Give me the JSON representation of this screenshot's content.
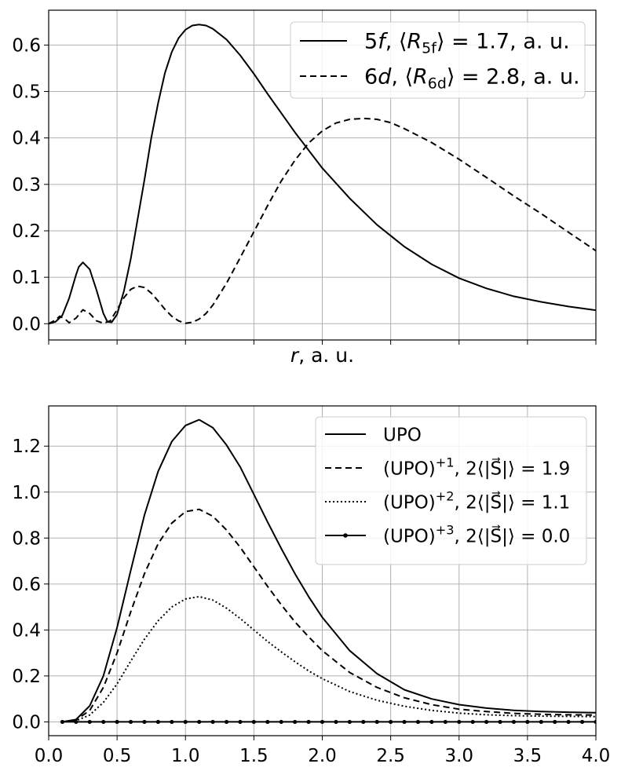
{
  "chart_data": [
    {
      "type": "line",
      "xlabel": "r, a. u.",
      "xlim": [
        0,
        4
      ],
      "ylim": [
        -0.035,
        0.675
      ],
      "xticks": [
        0,
        0.5,
        1,
        1.5,
        2,
        2.5,
        3,
        3.5,
        4
      ],
      "xtick_labels_visible": false,
      "yticks": [
        0.0,
        0.1,
        0.2,
        0.3,
        0.4,
        0.5,
        0.6
      ],
      "ytick_labels": [
        "0.0",
        "0.1",
        "0.2",
        "0.3",
        "0.4",
        "0.5",
        "0.6"
      ],
      "grid": true,
      "legend_position": "top-right",
      "series": [
        {
          "legend": {
            "main": "5",
            "italic": "f",
            "rest": ", ⟨R",
            "sub": "5f",
            "tail": "⟩ = 1.7, a. u."
          },
          "style": "solid",
          "x": [
            0,
            0.05,
            0.1,
            0.15,
            0.2,
            0.22,
            0.25,
            0.3,
            0.35,
            0.4,
            0.43,
            0.46,
            0.5,
            0.55,
            0.6,
            0.65,
            0.7,
            0.75,
            0.8,
            0.85,
            0.9,
            0.95,
            1.0,
            1.05,
            1.1,
            1.15,
            1.2,
            1.3,
            1.4,
            1.5,
            1.6,
            1.8,
            2.0,
            2.2,
            2.4,
            2.6,
            2.8,
            3.0,
            3.2,
            3.4,
            3.6,
            3.8,
            4.0
          ],
          "y": [
            0,
            0.004,
            0.018,
            0.055,
            0.105,
            0.122,
            0.132,
            0.117,
            0.072,
            0.022,
            0.004,
            0.003,
            0.02,
            0.07,
            0.14,
            0.225,
            0.31,
            0.4,
            0.475,
            0.54,
            0.585,
            0.615,
            0.633,
            0.642,
            0.644,
            0.642,
            0.635,
            0.612,
            0.578,
            0.538,
            0.495,
            0.412,
            0.335,
            0.27,
            0.213,
            0.166,
            0.128,
            0.098,
            0.076,
            0.059,
            0.047,
            0.037,
            0.029
          ]
        },
        {
          "legend": {
            "main": "6",
            "italic": "d",
            "rest": ", ⟨R",
            "sub": "6d",
            "tail": "⟩ = 2.8, a. u."
          },
          "style": "dashed",
          "x": [
            0,
            0.05,
            0.08,
            0.12,
            0.15,
            0.2,
            0.25,
            0.3,
            0.35,
            0.4,
            0.45,
            0.5,
            0.55,
            0.6,
            0.65,
            0.7,
            0.75,
            0.8,
            0.85,
            0.9,
            0.95,
            1.0,
            1.05,
            1.1,
            1.15,
            1.2,
            1.3,
            1.4,
            1.5,
            1.6,
            1.7,
            1.8,
            1.9,
            2.0,
            2.1,
            2.2,
            2.3,
            2.4,
            2.5,
            2.6,
            2.8,
            3.0,
            3.2,
            3.4,
            3.6,
            3.8,
            4.0
          ],
          "y": [
            0,
            0.008,
            0.016,
            0.01,
            0.002,
            0.012,
            0.03,
            0.022,
            0.006,
            0.001,
            0.006,
            0.03,
            0.056,
            0.074,
            0.081,
            0.078,
            0.066,
            0.049,
            0.031,
            0.016,
            0.006,
            0.001,
            0.003,
            0.01,
            0.022,
            0.04,
            0.087,
            0.142,
            0.198,
            0.254,
            0.307,
            0.352,
            0.389,
            0.415,
            0.432,
            0.44,
            0.442,
            0.44,
            0.433,
            0.42,
            0.39,
            0.354,
            0.315,
            0.275,
            0.237,
            0.197,
            0.157
          ]
        }
      ]
    },
    {
      "type": "line",
      "xlim": [
        0,
        4
      ],
      "ylim": [
        -0.06,
        1.375
      ],
      "xticks": [
        0,
        0.5,
        1,
        1.5,
        2,
        2.5,
        3,
        3.5,
        4
      ],
      "xtick_labels": [
        "0.0",
        "0.5",
        "1.0",
        "1.5",
        "2.0",
        "2.5",
        "3.0",
        "3.5",
        "4.0"
      ],
      "yticks": [
        0.0,
        0.2,
        0.4,
        0.6,
        0.8,
        1.0,
        1.2
      ],
      "ytick_labels": [
        "0.0",
        "0.2",
        "0.4",
        "0.6",
        "0.8",
        "1.0",
        "1.2"
      ],
      "grid": true,
      "legend_position": "top-right",
      "series": [
        {
          "legend": {
            "main": "UPO",
            "sup": "",
            "tail": ""
          },
          "style": "solid",
          "x": [
            0.1,
            0.2,
            0.3,
            0.4,
            0.5,
            0.6,
            0.7,
            0.8,
            0.9,
            1.0,
            1.1,
            1.2,
            1.3,
            1.4,
            1.5,
            1.6,
            1.7,
            1.8,
            1.9,
            2.0,
            2.2,
            2.4,
            2.6,
            2.8,
            3.0,
            3.2,
            3.4,
            3.6,
            3.8,
            4.0
          ],
          "y": [
            0.0,
            0.01,
            0.07,
            0.2,
            0.41,
            0.66,
            0.9,
            1.09,
            1.22,
            1.29,
            1.315,
            1.28,
            1.205,
            1.11,
            0.99,
            0.87,
            0.755,
            0.645,
            0.545,
            0.455,
            0.31,
            0.21,
            0.14,
            0.1,
            0.075,
            0.06,
            0.05,
            0.045,
            0.042,
            0.04
          ]
        },
        {
          "legend": {
            "main": "(UPO)",
            "sup": "+1",
            "tail": ", 2⟨|S⃗|⟩ = 1.9"
          },
          "style": "dashed",
          "x": [
            0.1,
            0.2,
            0.3,
            0.4,
            0.5,
            0.6,
            0.7,
            0.8,
            0.9,
            1.0,
            1.1,
            1.2,
            1.3,
            1.4,
            1.5,
            1.6,
            1.7,
            1.8,
            1.9,
            2.0,
            2.2,
            2.4,
            2.6,
            2.8,
            3.0,
            3.2,
            3.4,
            3.6,
            3.8,
            4.0
          ],
          "y": [
            0.0,
            0.008,
            0.05,
            0.15,
            0.3,
            0.48,
            0.645,
            0.775,
            0.865,
            0.915,
            0.925,
            0.895,
            0.835,
            0.76,
            0.675,
            0.59,
            0.51,
            0.435,
            0.37,
            0.31,
            0.215,
            0.15,
            0.105,
            0.075,
            0.055,
            0.045,
            0.037,
            0.033,
            0.031,
            0.03
          ]
        },
        {
          "legend": {
            "main": "(UPO)",
            "sup": "+2",
            "tail": ", 2⟨|S⃗|⟩ = 1.1"
          },
          "style": "dotted",
          "x": [
            0.1,
            0.2,
            0.3,
            0.4,
            0.5,
            0.6,
            0.7,
            0.8,
            0.9,
            1.0,
            1.1,
            1.2,
            1.3,
            1.4,
            1.5,
            1.6,
            1.7,
            1.8,
            1.9,
            2.0,
            2.2,
            2.4,
            2.6,
            2.8,
            3.0,
            3.2,
            3.4,
            3.6,
            3.8,
            4.0
          ],
          "y": [
            0.0,
            0.005,
            0.03,
            0.085,
            0.165,
            0.265,
            0.36,
            0.44,
            0.5,
            0.535,
            0.545,
            0.53,
            0.495,
            0.45,
            0.4,
            0.35,
            0.305,
            0.262,
            0.222,
            0.188,
            0.132,
            0.094,
            0.068,
            0.05,
            0.038,
            0.031,
            0.027,
            0.025,
            0.024,
            0.023
          ]
        },
        {
          "legend": {
            "main": "(UPO)",
            "sup": "+3",
            "tail": ", 2⟨|S⃗|⟩ = 0.0"
          },
          "style": "solid-markers",
          "x": [
            0.1,
            0.2,
            0.3,
            0.4,
            0.5,
            0.6,
            0.7,
            0.8,
            0.9,
            1.0,
            1.1,
            1.2,
            1.3,
            1.4,
            1.5,
            1.6,
            1.7,
            1.8,
            1.9,
            2.0,
            2.1,
            2.2,
            2.3,
            2.4,
            2.5,
            2.6,
            2.7,
            2.8,
            2.9,
            3.0,
            3.1,
            3.2,
            3.3,
            3.4,
            3.5,
            3.6,
            3.7,
            3.8,
            3.9,
            4.0
          ],
          "y": [
            0,
            0,
            0,
            0,
            0,
            0,
            0,
            0,
            0,
            0,
            0,
            0,
            0,
            0,
            0,
            0,
            0,
            0,
            0,
            0,
            0,
            0,
            0,
            0,
            0,
            0,
            0,
            0,
            0,
            0,
            0,
            0,
            0,
            0,
            0,
            0,
            0,
            0,
            0,
            0
          ]
        }
      ]
    }
  ]
}
